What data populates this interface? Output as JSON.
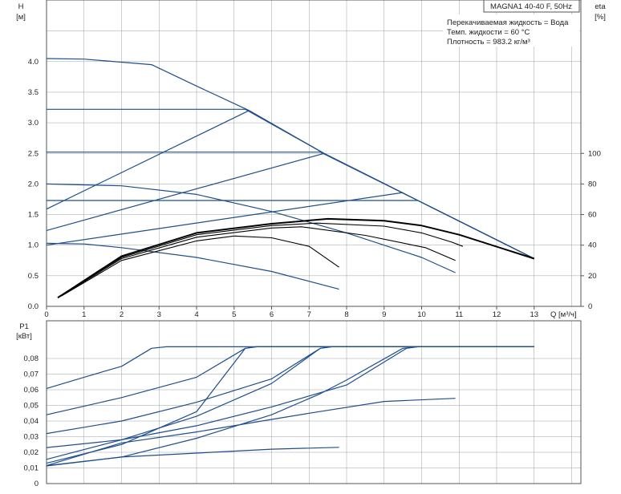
{
  "colors": {
    "curve": "#1f4e8c",
    "efficiency": "#000000",
    "grid": "#9aa0a6",
    "axis": "#555555"
  },
  "info": {
    "pump": "MAGNA1 40-40 F, 50Hz",
    "line1": "Перекачиваемая жидкость = Вода",
    "line2": "Темп. жидкости = 60 °C",
    "line3": "Плотность = 983.2 кг/м³"
  },
  "chart_data": [
    {
      "type": "line",
      "title": "",
      "xlabel": "Q [м³/ч]",
      "ylabel": "H",
      "ylabel_unit": "[м]",
      "y2label": "eta",
      "y2label_unit": "[%]",
      "xlim": [
        0,
        14
      ],
      "ylim": [
        0,
        5
      ],
      "y2lim": [
        0,
        200
      ],
      "x_ticks": [
        "0",
        "1",
        "2",
        "3",
        "4",
        "5",
        "6",
        "7",
        "8",
        "9",
        "10",
        "11",
        "12",
        "13"
      ],
      "y_ticks": [
        "0.0",
        "0.5",
        "1.0",
        "1.5",
        "2.0",
        "2.5",
        "3.0",
        "3.5",
        "4.0"
      ],
      "y2_ticks": [
        "0",
        "20",
        "40",
        "60",
        "80",
        "100"
      ],
      "grid": true,
      "series": [
        {
          "points": [
            [
              0,
              4.05
            ],
            [
              1,
              4.04
            ],
            [
              2.8,
              3.95
            ],
            [
              4,
              3.6
            ],
            [
              5.4,
              3.2
            ],
            [
              7.4,
              2.5
            ],
            [
              9.9,
              1.73
            ],
            [
              13,
              0.78
            ]
          ]
        },
        {
          "points": [
            [
              0,
              3.22
            ],
            [
              5.3,
              3.22
            ],
            [
              7.4,
              2.5
            ],
            [
              9.9,
              1.73
            ],
            [
              13,
              0.78
            ]
          ]
        },
        {
          "points": [
            [
              0,
              2.52
            ],
            [
              7.3,
              2.52
            ],
            [
              9.9,
              1.73
            ],
            [
              13,
              0.78
            ]
          ]
        },
        {
          "points": [
            [
              0,
              1.73
            ],
            [
              9.9,
              1.73
            ],
            [
              13,
              0.78
            ]
          ]
        },
        {
          "points": [
            [
              0,
              2.0
            ],
            [
              2,
              1.97
            ],
            [
              4,
              1.83
            ],
            [
              6,
              1.55
            ],
            [
              8,
              1.2
            ],
            [
              10,
              0.8
            ],
            [
              10.9,
              0.55
            ]
          ]
        },
        {
          "points": [
            [
              0,
              1.03
            ],
            [
              1,
              1.02
            ],
            [
              2,
              0.96
            ],
            [
              4,
              0.8
            ],
            [
              6,
              0.57
            ],
            [
              7.8,
              0.28
            ]
          ]
        },
        {
          "points": [
            [
              0,
              1.59
            ],
            [
              5.4,
              3.2
            ]
          ]
        },
        {
          "points": [
            [
              0,
              1.24
            ],
            [
              7.4,
              2.5
            ]
          ]
        },
        {
          "points": [
            [
              0,
              1.0
            ],
            [
              9.5,
              1.86
            ]
          ]
        },
        {
          "points": [
            [
              0.3,
              0.14
            ],
            [
              2,
              0.82
            ],
            [
              4,
              1.2
            ],
            [
              6,
              1.35
            ],
            [
              7.5,
              1.43
            ],
            [
              9,
              1.4
            ],
            [
              10,
              1.32
            ],
            [
              11,
              1.17
            ],
            [
              13,
              0.78
            ]
          ]
        },
        {
          "points": [
            [
              0.3,
              0.15
            ],
            [
              2,
              0.8
            ],
            [
              4,
              1.17
            ],
            [
              6,
              1.32
            ],
            [
              7.2,
              1.36
            ],
            [
              9,
              1.31
            ],
            [
              10,
              1.2
            ],
            [
              10.8,
              1.05
            ],
            [
              11.1,
              0.98
            ]
          ]
        },
        {
          "points": [
            [
              0.35,
              0.16
            ],
            [
              2,
              0.78
            ],
            [
              4,
              1.13
            ],
            [
              6,
              1.28
            ],
            [
              6.8,
              1.3
            ],
            [
              8.5,
              1.16
            ],
            [
              10.1,
              0.96
            ],
            [
              10.9,
              0.75
            ]
          ]
        },
        {
          "points": [
            [
              0.4,
              0.17
            ],
            [
              2,
              0.75
            ],
            [
              4,
              1.07
            ],
            [
              5,
              1.15
            ],
            [
              6,
              1.12
            ],
            [
              7,
              0.98
            ],
            [
              7.8,
              0.64
            ]
          ]
        }
      ]
    },
    {
      "type": "line",
      "title": "",
      "xlabel": "",
      "ylabel": "P1",
      "ylabel_unit": "[кВт]",
      "xlim": [
        0,
        14
      ],
      "ylim": [
        0,
        0.09
      ],
      "y_ticks": [
        "0",
        "0,01",
        "0,02",
        "0,03",
        "0,04",
        "0,05",
        "0,06",
        "0,07",
        "0,08"
      ],
      "grid": true,
      "series": [
        {
          "points": [
            [
              0,
              0.0608
            ],
            [
              1,
              0.068
            ],
            [
              2,
              0.075
            ],
            [
              2.8,
              0.0865
            ],
            [
              3.2,
              0.0875
            ],
            [
              13,
              0.0875
            ]
          ]
        },
        {
          "points": [
            [
              0,
              0.044
            ],
            [
              2,
              0.055
            ],
            [
              4,
              0.068
            ],
            [
              5.3,
              0.0865
            ],
            [
              5.6,
              0.0875
            ],
            [
              13,
              0.0875
            ]
          ]
        },
        {
          "points": [
            [
              0,
              0.032
            ],
            [
              2,
              0.04
            ],
            [
              4,
              0.052
            ],
            [
              6,
              0.067
            ],
            [
              7.3,
              0.0865
            ],
            [
              7.6,
              0.0875
            ],
            [
              13,
              0.0875
            ]
          ]
        },
        {
          "points": [
            [
              0,
              0.023
            ],
            [
              2,
              0.028
            ],
            [
              4,
              0.037
            ],
            [
              6,
              0.049
            ],
            [
              8,
              0.063
            ],
            [
              9.6,
              0.0865
            ],
            [
              9.9,
              0.0875
            ],
            [
              13,
              0.0875
            ]
          ]
        },
        {
          "points": [
            [
              0,
              0.0113
            ],
            [
              2,
              0.017
            ],
            [
              4,
              0.029
            ],
            [
              6,
              0.044
            ],
            [
              7.3,
              0.0575
            ],
            [
              8,
              0.0662
            ],
            [
              9.5,
              0.0865
            ],
            [
              9.9,
              0.0875
            ],
            [
              13,
              0.0875
            ]
          ]
        },
        {
          "points": [
            [
              0,
              0.013
            ],
            [
              2,
              0.025
            ],
            [
              4,
              0.046
            ],
            [
              5.3,
              0.0865
            ],
            [
              5.6,
              0.0875
            ],
            [
              13,
              0.0875
            ]
          ]
        },
        {
          "points": [
            [
              0,
              0.0115
            ],
            [
              2,
              0.026
            ],
            [
              4,
              0.033
            ],
            [
              6,
              0.041
            ],
            [
              7,
              0.045
            ],
            [
              9,
              0.0525
            ],
            [
              10.9,
              0.0545
            ]
          ]
        },
        {
          "points": [
            [
              0,
              0.0115
            ],
            [
              2,
              0.017
            ],
            [
              4,
              0.0195
            ],
            [
              6,
              0.022
            ],
            [
              7.8,
              0.0232
            ]
          ]
        },
        {
          "points": [
            [
              0,
              0.0155
            ],
            [
              2,
              0.028
            ],
            [
              4,
              0.043
            ],
            [
              6,
              0.064
            ],
            [
              7.3,
              0.0865
            ],
            [
              7.6,
              0.0875
            ],
            [
              13,
              0.0875
            ]
          ]
        }
      ]
    }
  ]
}
